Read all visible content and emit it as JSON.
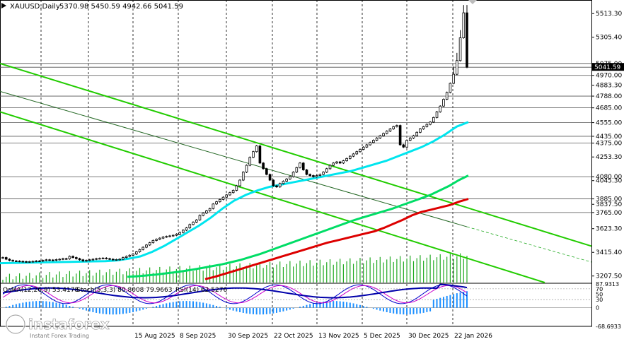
{
  "header": {
    "symbol_tf": "XAUUSD,Daily",
    "ohlc": "5370.98 5450.59 4942.66 5041.59"
  },
  "osc_header": {
    "osma": "OsMA(12,26,9) 53.4178",
    "stoch": "Stoch(5,3,3) 80.8008 79.9663",
    "rsi": "RSI(14) 62.5276"
  },
  "watermark": {
    "brand": "instaforex",
    "tagline": "Instant Forex Trading"
  },
  "colors": {
    "candle": "#000000",
    "ema_fast": "#00e5ee",
    "ema_mid": "#00dd66",
    "ema_slow": "#dd0000",
    "channel": "#22cc00",
    "volume": "#22aa22",
    "osma": "#1e90ff",
    "stoch_main": "#0000cc",
    "stoch_signal": "#cc00cc",
    "rsi": "#0000aa",
    "grid": "#000000"
  },
  "chart_data": {
    "type": "candlestick",
    "symbol": "XAUUSD",
    "timeframe": "Daily",
    "x_ticks": [
      "15 Aug 2025",
      "8 Sep 2025",
      "30 Sep 2025",
      "22 Oct 2025",
      "13 Nov 2025",
      "5 Dec 2025",
      "30 Dec 2025",
      "22 Jan 2026"
    ],
    "y_ticks": [
      5513.3,
      5305.4,
      5075.0,
      4970.0,
      4883.3,
      4788.0,
      4685.0,
      4555.0,
      4435.0,
      4375.0,
      4253.3,
      4080.0,
      4045.3,
      3885.0,
      3837.5,
      3765.0,
      3623.3,
      3415.4,
      3207.5
    ],
    "ylim": [
      3150,
      5620
    ],
    "horizontal_levels": [
      5075.0,
      5041.59,
      4970.0,
      4788.0,
      4685.0,
      4555.0,
      4435.0,
      4375.0,
      4080.0,
      3885.0,
      3765.0
    ],
    "current_price": "5041.59",
    "candles_close_approx": [
      3370,
      3355,
      3345,
      3340,
      3338,
      3336,
      3334,
      3332,
      3334,
      3336,
      3340,
      3338,
      3345,
      3350,
      3348,
      3346,
      3352,
      3355,
      3360,
      3358,
      3380,
      3370,
      3360,
      3350,
      3340,
      3345,
      3350,
      3355,
      3360,
      3362,
      3365,
      3360,
      3355,
      3350,
      3352,
      3355,
      3370,
      3380,
      3390,
      3400,
      3420,
      3440,
      3460,
      3480,
      3500,
      3520,
      3530,
      3540,
      3550,
      3555,
      3560,
      3565,
      3575,
      3590,
      3610,
      3630,
      3660,
      3680,
      3700,
      3740,
      3760,
      3780,
      3800,
      3840,
      3860,
      3880,
      3900,
      3920,
      3940,
      3960,
      4000,
      4050,
      4120,
      4180,
      4250,
      4300,
      4350,
      4200,
      4150,
      4100,
      4050,
      4000,
      3990,
      4020,
      4040,
      4060,
      4080,
      4120,
      4160,
      4200,
      4140,
      4100,
      4090,
      4080,
      4090,
      4100,
      4120,
      4150,
      4180,
      4200,
      4210,
      4200,
      4220,
      4240,
      4260,
      4280,
      4300,
      4320,
      4340,
      4360,
      4380,
      4400,
      4420,
      4440,
      4460,
      4480,
      4500,
      4520,
      4530,
      4360,
      4340,
      4400,
      4420,
      4440,
      4470,
      4500,
      4520,
      4540,
      4560,
      4600,
      4650,
      4700,
      4760,
      4820,
      4900,
      4980,
      5100,
      5300,
      5520,
      5041.59
    ],
    "series": [
      {
        "name": "",
        "kind": "ema_fast",
        "values": [
          3320,
          3322,
          3324,
          3326,
          3328,
          3330,
          3332,
          3334,
          3336,
          3338,
          3345,
          3360,
          3380,
          3420,
          3470,
          3530,
          3590,
          3650,
          3720,
          3800,
          3870,
          3920,
          3960,
          3990,
          4010,
          4030,
          4050,
          4070,
          4090,
          4110,
          4130,
          4160,
          4190,
          4220,
          4260,
          4300,
          4340,
          4390,
          4450,
          4520,
          4560
        ]
      },
      {
        "name": "",
        "kind": "ema_mid",
        "values": [
          3200,
          3205,
          3212,
          3220,
          3230,
          3240,
          3252,
          3265,
          3280,
          3295,
          3310,
          3330,
          3350,
          3375,
          3400,
          3430,
          3460,
          3490,
          3520,
          3550,
          3580,
          3610,
          3640,
          3670,
          3700,
          3725,
          3750,
          3775,
          3800,
          3830,
          3860,
          3890,
          3920,
          3960,
          4000,
          4050,
          4090
        ]
      },
      {
        "name": "",
        "kind": "ema_slow",
        "values": [
          3180,
          3200,
          3225,
          3250,
          3275,
          3300,
          3325,
          3350,
          3375,
          3400,
          3425,
          3450,
          3475,
          3500,
          3520,
          3540,
          3560,
          3580,
          3600,
          3630,
          3665,
          3700,
          3740,
          3770,
          3790,
          3810,
          3830,
          3860,
          3885
        ]
      }
    ],
    "oscillator_scale": [
      "87.9313",
      "70",
      "50",
      "30",
      "0",
      "-68.6933"
    ],
    "grid": true
  }
}
